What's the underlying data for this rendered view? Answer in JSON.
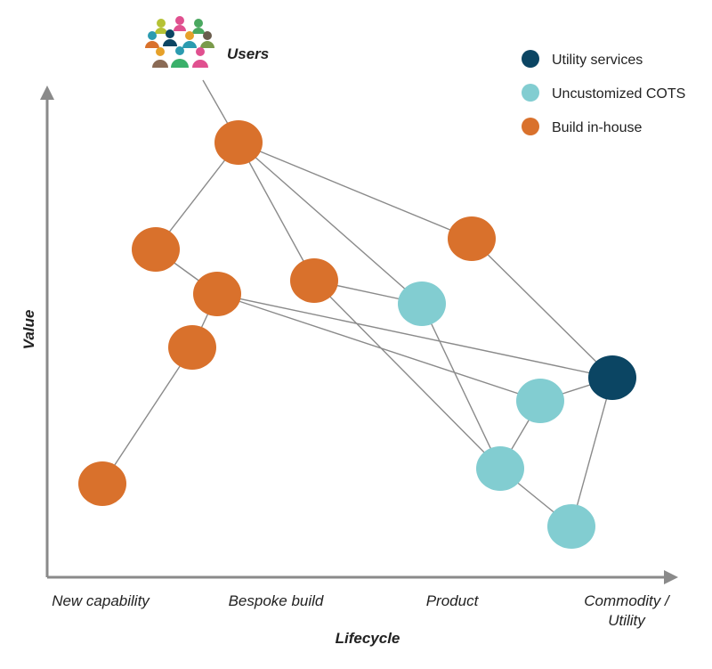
{
  "colors": {
    "utility": "#0b4563",
    "cots": "#82cdd1",
    "inhouse": "#d9712c",
    "axis": "#8a8a8a",
    "line": "#8a8a8a"
  },
  "legend": [
    {
      "key": "utility",
      "label": "Utility services"
    },
    {
      "key": "cots",
      "label": "Uncustomized COTS"
    },
    {
      "key": "inhouse",
      "label": "Build in-house"
    }
  ],
  "axes": {
    "y_title": "Value",
    "x_title": "Lifecycle",
    "stages": [
      "New capability",
      "Bespoke build",
      "Product",
      "Commodity /",
      "Utility"
    ]
  },
  "users_label": "Users",
  "users_icon": "users-group-icon"
}
